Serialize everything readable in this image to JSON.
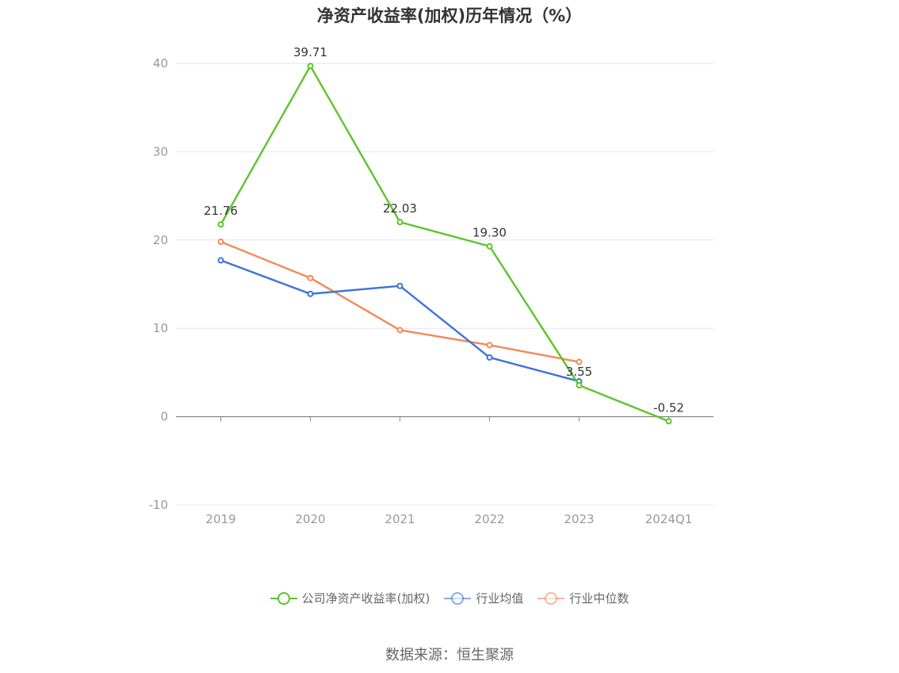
{
  "title": "净资产收益率(加权)历年情况（%）",
  "source": "数据来源：恒生聚源",
  "chart_data": {
    "type": "line",
    "categories": [
      "2019",
      "2020",
      "2021",
      "2022",
      "2023",
      "2024Q1"
    ],
    "ylim": [
      -10,
      40
    ],
    "yticks": [
      -10,
      0,
      10,
      20,
      30,
      40
    ],
    "grid": true,
    "legend_position": "bottom-center",
    "series": [
      {
        "name": "公司净资产收益率(加权)",
        "color": "#5dc42b",
        "values": [
          21.76,
          39.71,
          22.03,
          19.3,
          3.55,
          -0.52
        ],
        "labels": [
          "21.76",
          "39.71",
          "22.03",
          "19.30",
          "3.55",
          "-0.52"
        ]
      },
      {
        "name": "行业均值",
        "color": "#3d74d9",
        "values": [
          17.7,
          13.9,
          14.8,
          6.7,
          4.0,
          null
        ]
      },
      {
        "name": "行业中位数",
        "color": "#f5885a",
        "values": [
          19.8,
          15.7,
          9.8,
          8.1,
          6.2,
          null
        ]
      }
    ]
  }
}
